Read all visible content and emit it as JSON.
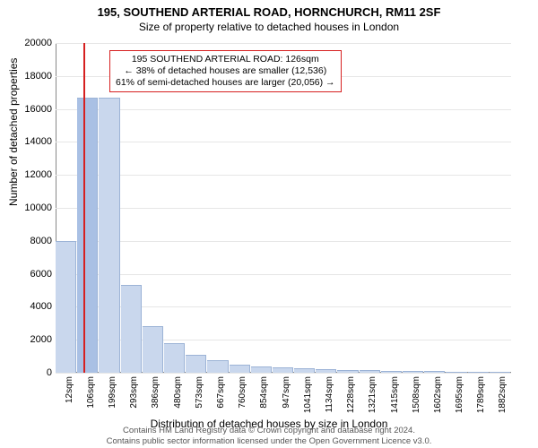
{
  "title_main": "195, SOUTHEND ARTERIAL ROAD, HORNCHURCH, RM11 2SF",
  "title_sub": "Size of property relative to detached houses in London",
  "chart": {
    "type": "histogram",
    "ylabel": "Number of detached properties",
    "xlabel": "Distribution of detached houses by size in London",
    "ylim": [
      0,
      20000
    ],
    "xticks": [
      "12sqm",
      "106sqm",
      "199sqm",
      "293sqm",
      "386sqm",
      "480sqm",
      "573sqm",
      "667sqm",
      "760sqm",
      "854sqm",
      "947sqm",
      "1041sqm",
      "1134sqm",
      "1228sqm",
      "1321sqm",
      "1415sqm",
      "1508sqm",
      "1602sqm",
      "1695sqm",
      "1789sqm",
      "1882sqm"
    ],
    "yticks": [
      0,
      2000,
      4000,
      6000,
      8000,
      10000,
      12000,
      14000,
      16000,
      18000,
      20000
    ],
    "values": [
      8000,
      16700,
      16700,
      5300,
      2800,
      1800,
      1100,
      750,
      500,
      400,
      320,
      250,
      200,
      180,
      150,
      130,
      110,
      95,
      80,
      70,
      60
    ],
    "bar_fill": "#c9d7ed",
    "bar_stroke": "#9cb3d6",
    "grid_color": "#e6e6e6",
    "axis_color": "#888888",
    "background": "#ffffff",
    "highlight_bar_index": 1,
    "highlight_bar_fill": "#a9c0e4",
    "marker_line_color": "#d62020",
    "marker_sqm": 126,
    "font_family": "Arial, sans-serif",
    "label_fontsize": 12,
    "tick_fontsize": 11
  },
  "annotation": {
    "line1": "195 SOUTHEND ARTERIAL ROAD: 126sqm",
    "line2": "← 38% of detached houses are smaller (12,536)",
    "line3": "61% of semi-detached houses are larger (20,056) →",
    "border_color": "#d62020",
    "bg_color": "#ffffff"
  },
  "footer": {
    "line1": "Contains HM Land Registry data © Crown copyright and database right 2024.",
    "line2": "Contains public sector information licensed under the Open Government Licence v3.0."
  }
}
